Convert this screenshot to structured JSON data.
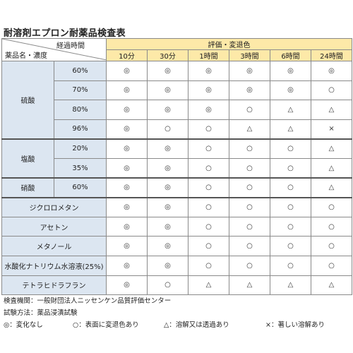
{
  "title": "耐溶剤エプロン耐薬品検査表",
  "header": {
    "elapsed": "経過時間",
    "chem_conc": "薬品名・濃度",
    "evaluation": "評価・変退色",
    "times": [
      "10分",
      "30分",
      "1時間",
      "3時間",
      "6時間",
      "24時間"
    ]
  },
  "groups": [
    {
      "name": "硫酸",
      "rows": [
        {
          "conc": "60%",
          "vals": [
            "◎",
            "◎",
            "◎",
            "◎",
            "◎",
            "◎"
          ]
        },
        {
          "conc": "70%",
          "vals": [
            "◎",
            "◎",
            "◎",
            "◎",
            "◎",
            "○"
          ]
        },
        {
          "conc": "80%",
          "vals": [
            "◎",
            "◎",
            "◎",
            "○",
            "△",
            "△"
          ]
        },
        {
          "conc": "96%",
          "vals": [
            "◎",
            "○",
            "○",
            "△",
            "△",
            "×"
          ]
        }
      ]
    },
    {
      "name": "塩酸",
      "rows": [
        {
          "conc": "20%",
          "vals": [
            "◎",
            "◎",
            "○",
            "○",
            "○",
            "△"
          ]
        },
        {
          "conc": "35%",
          "vals": [
            "◎",
            "◎",
            "○",
            "○",
            "○",
            "△"
          ]
        }
      ]
    },
    {
      "name": "硝酸",
      "rows": [
        {
          "conc": "60%",
          "vals": [
            "◎",
            "◎",
            "○",
            "○",
            "○",
            "△"
          ]
        }
      ]
    }
  ],
  "singles": [
    {
      "name": "ジクロロメタン",
      "vals": [
        "◎",
        "◎",
        "○",
        "○",
        "○",
        "○"
      ]
    },
    {
      "name": "アセトン",
      "vals": [
        "◎",
        "◎",
        "○",
        "○",
        "○",
        "○"
      ]
    },
    {
      "name": "メタノール",
      "vals": [
        "◎",
        "◎",
        "○",
        "○",
        "○",
        "○"
      ]
    },
    {
      "name": "水酸化ナトリウム水溶液(25%)",
      "vals": [
        "◎",
        "◎",
        "○",
        "○",
        "○",
        "○"
      ]
    },
    {
      "name": "テトラヒドラフラン",
      "vals": [
        "◎",
        "○",
        "△",
        "△",
        "△",
        "△"
      ]
    }
  ],
  "footer": {
    "inspector": "検査機関：一般財団法人ニッセンケン品質評価センター",
    "method": "試験方法：薬品浸漬試験",
    "legend": [
      "◎：変化なし",
      "○：表面に変退色あり",
      "△：溶解又は透過あり",
      "×：著しい溶解あり"
    ]
  }
}
